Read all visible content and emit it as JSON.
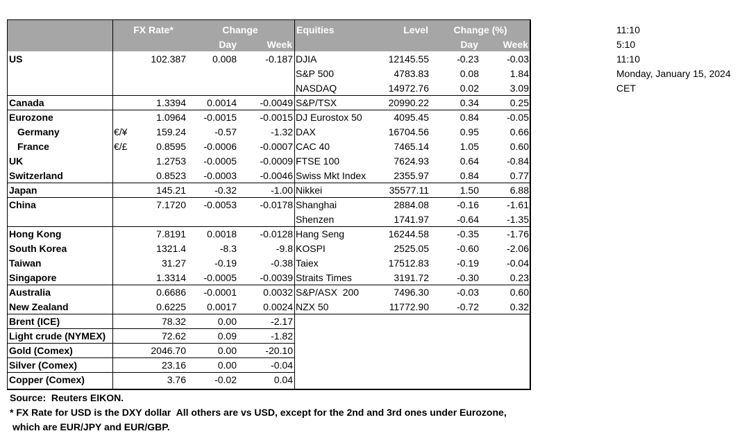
{
  "table": {
    "header": {
      "fx_rate": "FX Rate*",
      "change": "Change",
      "day": "Day",
      "week": "Week",
      "equities": "Equities",
      "level": "Level",
      "change_pct": "Change (%)",
      "eq_day": "Day",
      "eq_week": "Week"
    },
    "rows": [
      {
        "region": "US",
        "fx": "102.387",
        "day": "0.008",
        "week": "-0.187",
        "equity": "DJIA",
        "level": "12145.55",
        "eq_day": "-0.23",
        "eq_week": "-0.03"
      },
      {
        "equity": "S&P 500",
        "level": "4783.83",
        "eq_day": "0.08",
        "eq_week": "1.84"
      },
      {
        "equity": "NASDAQ",
        "level": "14972.76",
        "eq_day": "0.02",
        "eq_week": "3.09"
      },
      {
        "region": "Canada",
        "fx": "1.3394",
        "day": "0.0014",
        "week": "-0.0049",
        "equity": "S&P/TSX",
        "level": "20990.22",
        "eq_day": "0.34",
        "eq_week": "0.25"
      },
      {
        "region": "Eurozone",
        "fx": "1.0964",
        "day": "-0.0015",
        "week": "-0.0015",
        "equity": "DJ Eurostox 50",
        "level": "4095.45",
        "eq_day": "0.84",
        "eq_week": "-0.05"
      },
      {
        "region": "Germany",
        "pair": "€/¥",
        "fx": "159.24",
        "day": "-0.57",
        "week": "-1.32",
        "equity": "DAX",
        "level": "16704.56",
        "eq_day": "0.95",
        "eq_week": "0.66"
      },
      {
        "region": "France",
        "pair": "€/£",
        "fx": "0.8595",
        "day": "-0.0006",
        "week": "-0.0007",
        "equity": "CAC 40",
        "level": "7465.14",
        "eq_day": "1.05",
        "eq_week": "0.60"
      },
      {
        "region": "UK",
        "fx": "1.2753",
        "day": "-0.0005",
        "week": "-0.0009",
        "equity": "FTSE 100",
        "level": "7624.93",
        "eq_day": "0.64",
        "eq_week": "-0.84"
      },
      {
        "region": "Switzerland",
        "fx": "0.8523",
        "day": "-0.0003",
        "week": "-0.0046",
        "equity": "Swiss Mkt Index",
        "level": "2355.97",
        "eq_day": "0.84",
        "eq_week": "0.77"
      },
      {
        "region": "Japan",
        "fx": "145.21",
        "day": "-0.32",
        "week": "-1.00",
        "equity": "Nikkei",
        "level": "35577.11",
        "eq_day": "1.50",
        "eq_week": "6.88"
      },
      {
        "region": "China",
        "fx": "7.1720",
        "day": "-0.0053",
        "week": "-0.0178",
        "equity": "Shanghai",
        "level": "2884.08",
        "eq_day": "-0.16",
        "eq_week": "-1.61"
      },
      {
        "equity": "Shenzen",
        "level": "1741.97",
        "eq_day": "-0.64",
        "eq_week": "-1.35"
      },
      {
        "region": "Hong Kong",
        "fx": "7.8191",
        "day": "0.0018",
        "week": "-0.0128",
        "equity": "Hang Seng",
        "level": "16244.58",
        "eq_day": "-0.35",
        "eq_week": "-1.76"
      },
      {
        "region": "South Korea",
        "fx": "1321.4",
        "day": "-8.3",
        "week": "-9.8",
        "equity": "KOSPI",
        "level": "2525.05",
        "eq_day": "-0.60",
        "eq_week": "-2.06"
      },
      {
        "region": "Taiwan",
        "fx": "31.27",
        "day": "-0.19",
        "week": "-0.38",
        "equity": "Taiex",
        "level": "17512.83",
        "eq_day": "-0.19",
        "eq_week": "-0.04"
      },
      {
        "region": "Singapore",
        "fx": "1.3314",
        "day": "-0.0005",
        "week": "-0.0039",
        "equity": "Straits Times",
        "level": "3191.72",
        "eq_day": "-0.30",
        "eq_week": "0.23"
      },
      {
        "region": "Australia",
        "fx": "0.6686",
        "day": "-0.0001",
        "week": "0.0032",
        "equity": "S&P/ASX  200",
        "level": "7496.30",
        "eq_day": "-0.03",
        "eq_week": "0.60"
      },
      {
        "region": "New Zealand",
        "fx": "0.6225",
        "day": "0.0017",
        "week": "0.0024",
        "equity": "NZX 50",
        "level": "11772.90",
        "eq_day": "-0.72",
        "eq_week": "0.32"
      },
      {
        "region": "Brent (ICE)",
        "fx": "78.32",
        "day": "0.00",
        "week": "-2.17"
      },
      {
        "region": "Light crude (NYMEX)",
        "fx": "72.62",
        "day": "0.09",
        "week": "-1.82"
      },
      {
        "region": "Gold (Comex)",
        "fx": "2046.70",
        "day": "0.00",
        "week": "-20.10"
      },
      {
        "region": "Silver (Comex)",
        "fx": "23.16",
        "day": "0.00",
        "week": "-0.04"
      },
      {
        "region": "Copper (Comex)",
        "fx": "3.76",
        "day": "-0.02",
        "week": "0.04"
      }
    ]
  },
  "footer": {
    "source": "Source:  Reuters EIKON.",
    "note_1": "* FX Rate for USD is the DXY dollar  All others are vs USD, except for the 2nd and 3rd ones under Eurozone,",
    "note_2": "which are EUR/JPY and EUR/GBP."
  },
  "side": {
    "time_1": "11:10",
    "time_2": "5:10",
    "time_3": "11:10",
    "date": "Monday, January 15, 2024",
    "zone": "CET"
  }
}
